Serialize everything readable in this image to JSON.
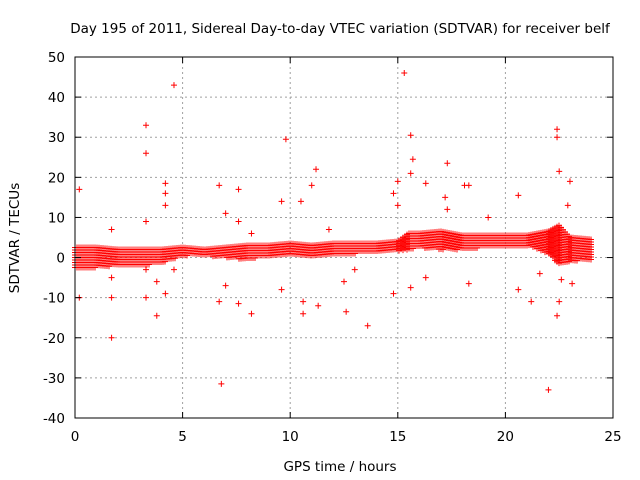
{
  "chart_data": {
    "type": "scatter",
    "title": "Day 195 of 2011, Sidereal Day-to-day VTEC variation (SDTVAR) for receiver belf",
    "xlabel": "GPS time / hours",
    "ylabel": "SDTVAR / TECUs",
    "xlim": [
      0,
      25
    ],
    "ylim": [
      -40,
      50
    ],
    "x_ticks": [
      0,
      5,
      10,
      15,
      20,
      25
    ],
    "y_ticks": [
      -40,
      -30,
      -20,
      -10,
      0,
      10,
      20,
      30,
      40,
      50
    ],
    "x_tick_labels": [
      "0",
      "5",
      "10",
      "15",
      "20",
      "25"
    ],
    "y_tick_labels": [
      "-40",
      "-30",
      "-20",
      "-10",
      "0",
      "10",
      "20",
      "30",
      "40",
      "50"
    ],
    "grid": true,
    "marker": "plus",
    "color": "#ff0000",
    "series": [
      {
        "name": "SDTVAR",
        "band_description": "dense continuous band of points across 0-24 h",
        "band": [
          {
            "x": 0.0,
            "low": -2.5,
            "high": 2.5
          },
          {
            "x": 1.0,
            "low": -2.5,
            "high": 2.5
          },
          {
            "x": 2.0,
            "low": -2.0,
            "high": 2.0
          },
          {
            "x": 3.0,
            "low": -2.0,
            "high": 2.0
          },
          {
            "x": 4.0,
            "low": -1.5,
            "high": 2.0
          },
          {
            "x": 5.0,
            "low": 0.5,
            "high": 2.5
          },
          {
            "x": 6.0,
            "low": 0.5,
            "high": 2.0
          },
          {
            "x": 7.0,
            "low": 0.0,
            "high": 2.5
          },
          {
            "x": 8.0,
            "low": -0.5,
            "high": 3.0
          },
          {
            "x": 9.0,
            "low": 0.5,
            "high": 3.0
          },
          {
            "x": 10.0,
            "low": 0.5,
            "high": 3.5
          },
          {
            "x": 11.0,
            "low": 0.5,
            "high": 3.0
          },
          {
            "x": 12.0,
            "low": 1.0,
            "high": 3.5
          },
          {
            "x": 13.0,
            "low": 1.0,
            "high": 3.5
          },
          {
            "x": 14.0,
            "low": 1.5,
            "high": 3.5
          },
          {
            "x": 15.0,
            "low": 1.5,
            "high": 4.0
          },
          {
            "x": 15.5,
            "low": 2.0,
            "high": 6.0
          },
          {
            "x": 16.0,
            "low": 2.5,
            "high": 6.0
          },
          {
            "x": 17.0,
            "low": 2.0,
            "high": 6.5
          },
          {
            "x": 18.0,
            "low": 2.0,
            "high": 5.5
          },
          {
            "x": 19.0,
            "low": 2.5,
            "high": 5.5
          },
          {
            "x": 20.0,
            "low": 2.5,
            "high": 5.5
          },
          {
            "x": 21.0,
            "low": 3.0,
            "high": 5.5
          },
          {
            "x": 22.0,
            "low": 1.0,
            "high": 6.5
          },
          {
            "x": 22.5,
            "low": -2.0,
            "high": 8.0
          },
          {
            "x": 23.0,
            "low": -1.0,
            "high": 5.0
          },
          {
            "x": 24.0,
            "low": -0.5,
            "high": 4.5
          }
        ],
        "points": [
          {
            "x": 0.2,
            "y": 17
          },
          {
            "x": 0.2,
            "y": -10
          },
          {
            "x": 1.7,
            "y": 7
          },
          {
            "x": 1.7,
            "y": -5
          },
          {
            "x": 1.7,
            "y": -10
          },
          {
            "x": 1.7,
            "y": -20
          },
          {
            "x": 3.3,
            "y": 33
          },
          {
            "x": 3.3,
            "y": 26
          },
          {
            "x": 3.3,
            "y": 9
          },
          {
            "x": 3.3,
            "y": -3
          },
          {
            "x": 3.3,
            "y": -10
          },
          {
            "x": 3.8,
            "y": -6
          },
          {
            "x": 3.8,
            "y": -14.5
          },
          {
            "x": 4.2,
            "y": 18.5
          },
          {
            "x": 4.2,
            "y": 16
          },
          {
            "x": 4.2,
            "y": 13
          },
          {
            "x": 4.2,
            "y": -9
          },
          {
            "x": 4.6,
            "y": 43
          },
          {
            "x": 4.6,
            "y": -3
          },
          {
            "x": 6.7,
            "y": 18
          },
          {
            "x": 6.7,
            "y": -11
          },
          {
            "x": 6.8,
            "y": -31.5
          },
          {
            "x": 7.0,
            "y": 11
          },
          {
            "x": 7.0,
            "y": -7
          },
          {
            "x": 7.6,
            "y": 17
          },
          {
            "x": 7.6,
            "y": 9
          },
          {
            "x": 7.6,
            "y": -11.5
          },
          {
            "x": 8.2,
            "y": -14
          },
          {
            "x": 8.2,
            "y": 6
          },
          {
            "x": 9.8,
            "y": 29.5
          },
          {
            "x": 9.6,
            "y": 14
          },
          {
            "x": 9.6,
            "y": -8
          },
          {
            "x": 10.5,
            "y": 14
          },
          {
            "x": 10.6,
            "y": -14
          },
          {
            "x": 10.6,
            "y": -11
          },
          {
            "x": 11.0,
            "y": 18
          },
          {
            "x": 11.2,
            "y": 22
          },
          {
            "x": 11.3,
            "y": -12
          },
          {
            "x": 11.8,
            "y": 7
          },
          {
            "x": 12.5,
            "y": -6
          },
          {
            "x": 12.6,
            "y": -13.5
          },
          {
            "x": 13.0,
            "y": -3
          },
          {
            "x": 13.6,
            "y": -17
          },
          {
            "x": 14.8,
            "y": 16
          },
          {
            "x": 14.8,
            "y": -9
          },
          {
            "x": 15.0,
            "y": 19
          },
          {
            "x": 15.0,
            "y": 13
          },
          {
            "x": 15.3,
            "y": 46
          },
          {
            "x": 15.6,
            "y": 30.5
          },
          {
            "x": 15.7,
            "y": 24.5
          },
          {
            "x": 15.6,
            "y": 21
          },
          {
            "x": 15.6,
            "y": -7.5
          },
          {
            "x": 16.3,
            "y": 18.5
          },
          {
            "x": 16.3,
            "y": -5
          },
          {
            "x": 17.3,
            "y": 23.5
          },
          {
            "x": 17.2,
            "y": 15
          },
          {
            "x": 17.3,
            "y": 12
          },
          {
            "x": 18.1,
            "y": 18
          },
          {
            "x": 18.3,
            "y": 18
          },
          {
            "x": 18.3,
            "y": -6.5
          },
          {
            "x": 19.2,
            "y": 10
          },
          {
            "x": 20.6,
            "y": 15.5
          },
          {
            "x": 20.6,
            "y": -8
          },
          {
            "x": 21.2,
            "y": -11
          },
          {
            "x": 21.6,
            "y": -4
          },
          {
            "x": 22.0,
            "y": -33
          },
          {
            "x": 22.4,
            "y": 32
          },
          {
            "x": 22.4,
            "y": 30
          },
          {
            "x": 22.5,
            "y": 21.5
          },
          {
            "x": 22.4,
            "y": -14.5
          },
          {
            "x": 22.5,
            "y": -11
          },
          {
            "x": 22.6,
            "y": -5.5
          },
          {
            "x": 22.9,
            "y": 13
          },
          {
            "x": 23.0,
            "y": 19
          },
          {
            "x": 23.1,
            "y": -6.5
          }
        ]
      }
    ]
  }
}
